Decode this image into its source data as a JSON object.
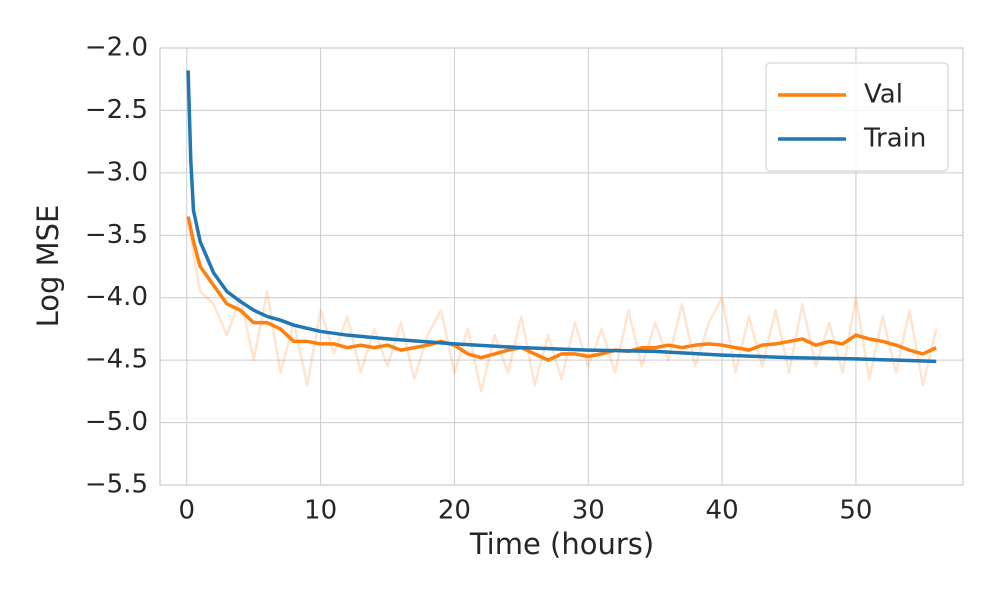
{
  "chart_data": {
    "type": "line",
    "x_label": "Time (hours)",
    "y_label": "Log MSE",
    "xlim": [
      -2.0,
      58.0
    ],
    "ylim": [
      -5.5,
      -2.0
    ],
    "xticks": [
      0,
      10,
      20,
      30,
      40,
      50
    ],
    "yticks": [
      {
        "value": -2.0,
        "label": "−2.0"
      },
      {
        "value": -2.5,
        "label": "−2.5"
      },
      {
        "value": -3.0,
        "label": "−3.0"
      },
      {
        "value": -3.5,
        "label": "−3.5"
      },
      {
        "value": -4.0,
        "label": "−4.0"
      },
      {
        "value": -4.5,
        "label": "−4.5"
      },
      {
        "value": -5.0,
        "label": "−5.0"
      },
      {
        "value": -5.5,
        "label": "−5.5"
      }
    ],
    "grid": true,
    "legend": "upper right",
    "series": [
      {
        "name": "Val",
        "color": "#ff7f0e",
        "x": [
          0.1,
          0.5,
          1,
          2,
          3,
          4,
          5,
          6,
          7,
          8,
          9,
          10,
          11,
          12,
          13,
          14,
          15,
          16,
          17,
          18,
          19,
          20,
          21,
          22,
          23,
          24,
          25,
          26,
          27,
          28,
          29,
          30,
          31,
          32,
          33,
          34,
          35,
          36,
          37,
          38,
          39,
          40,
          41,
          42,
          43,
          44,
          45,
          46,
          47,
          48,
          49,
          50,
          51,
          52,
          53,
          54,
          55,
          56
        ],
        "values": [
          -3.35,
          -3.55,
          -3.75,
          -3.9,
          -4.05,
          -4.1,
          -4.2,
          -4.2,
          -4.25,
          -4.35,
          -4.35,
          -4.37,
          -4.37,
          -4.4,
          -4.38,
          -4.4,
          -4.38,
          -4.42,
          -4.4,
          -4.38,
          -4.35,
          -4.38,
          -4.45,
          -4.48,
          -4.45,
          -4.42,
          -4.4,
          -4.45,
          -4.5,
          -4.45,
          -4.45,
          -4.47,
          -4.45,
          -4.42,
          -4.43,
          -4.4,
          -4.4,
          -4.38,
          -4.4,
          -4.38,
          -4.37,
          -4.38,
          -4.4,
          -4.42,
          -4.38,
          -4.37,
          -4.35,
          -4.33,
          -4.38,
          -4.35,
          -4.37,
          -4.3,
          -4.33,
          -4.35,
          -4.38,
          -4.42,
          -4.45,
          -4.4
        ]
      },
      {
        "name": "Train",
        "color": "#1f77b4",
        "x": [
          0.1,
          0.3,
          0.5,
          1,
          2,
          3,
          4,
          5,
          6,
          7,
          8,
          10,
          12,
          15,
          20,
          25,
          30,
          35,
          40,
          45,
          50,
          56
        ],
        "values": [
          -2.18,
          -2.9,
          -3.3,
          -3.55,
          -3.8,
          -3.95,
          -4.03,
          -4.1,
          -4.15,
          -4.18,
          -4.22,
          -4.27,
          -4.3,
          -4.33,
          -4.37,
          -4.4,
          -4.42,
          -4.43,
          -4.46,
          -4.48,
          -4.49,
          -4.51
        ]
      },
      {
        "color": "#ff7f0e",
        "alpha": 0.2,
        "x": [
          0.1,
          1,
          2,
          3,
          4,
          5,
          6,
          7,
          8,
          9,
          10,
          11,
          12,
          13,
          14,
          15,
          16,
          17,
          18,
          19,
          20,
          21,
          22,
          23,
          24,
          25,
          26,
          27,
          28,
          29,
          30,
          31,
          32,
          33,
          34,
          35,
          36,
          37,
          38,
          39,
          40,
          41,
          42,
          43,
          44,
          45,
          46,
          47,
          48,
          49,
          50,
          51,
          52,
          53,
          54,
          55,
          56
        ],
        "values": [
          -3.4,
          -3.95,
          -4.05,
          -4.3,
          -4.0,
          -4.5,
          -3.95,
          -4.6,
          -4.2,
          -4.7,
          -4.1,
          -4.45,
          -4.15,
          -4.6,
          -4.25,
          -4.55,
          -4.2,
          -4.65,
          -4.3,
          -4.1,
          -4.6,
          -4.25,
          -4.75,
          -4.3,
          -4.6,
          -4.15,
          -4.7,
          -4.3,
          -4.65,
          -4.2,
          -4.55,
          -4.25,
          -4.6,
          -4.1,
          -4.55,
          -4.2,
          -4.5,
          -4.05,
          -4.55,
          -4.2,
          -4.0,
          -4.6,
          -4.15,
          -4.55,
          -4.1,
          -4.6,
          -4.05,
          -4.55,
          -4.2,
          -4.6,
          -4.0,
          -4.65,
          -4.15,
          -4.6,
          -4.1,
          -4.7,
          -4.25
        ]
      }
    ]
  }
}
